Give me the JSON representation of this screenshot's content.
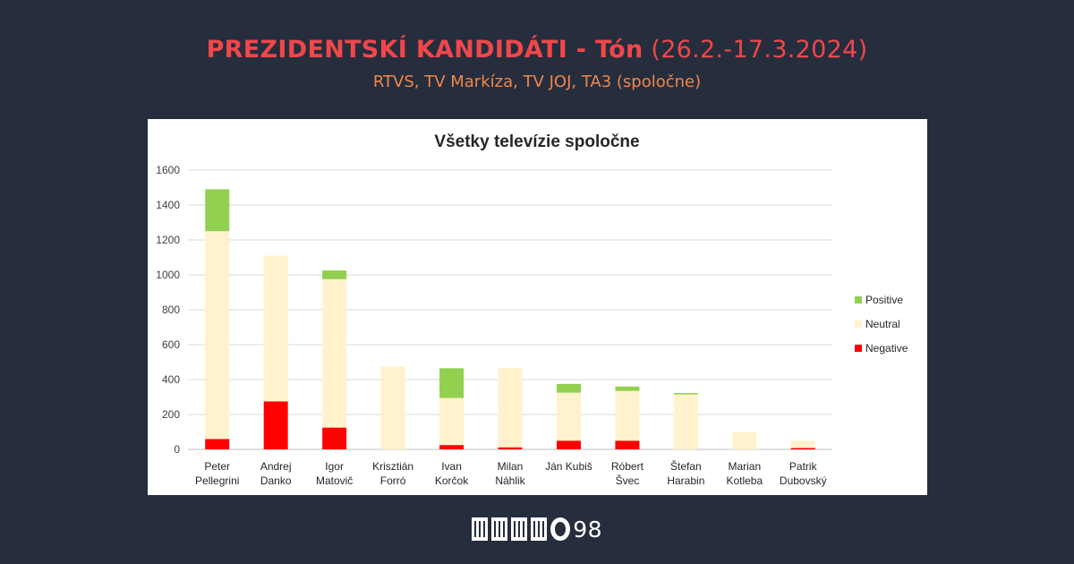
{
  "header": {
    "title_bold": "PREZIDENTSKÍ KANDIDÁTI - Tón",
    "title_light": "(26.2.-17.3.2024)",
    "subtitle": "RTVS, TV Markíza, TV JOJ, TA3 (spoločne)"
  },
  "logo": {
    "mark": "MEMO",
    "number": "98"
  },
  "chart_data": {
    "type": "bar",
    "stacked": true,
    "title": "Všetky televízie spoločne",
    "categories": [
      [
        "Peter",
        "Pellegrini"
      ],
      [
        "Andrej",
        "Danko"
      ],
      [
        "Igor",
        "Matovič"
      ],
      [
        "Krisztián",
        "Forró"
      ],
      [
        "Ivan",
        "Korčok"
      ],
      [
        "Milan",
        "Náhlik"
      ],
      [
        "Ján Kubiš"
      ],
      [
        "Róbert",
        "Švec"
      ],
      [
        "Štefan",
        "Harabin"
      ],
      [
        "Marian",
        "Kotleba"
      ],
      [
        "Patrik",
        "Dubovský"
      ]
    ],
    "series": [
      {
        "name": "Negative",
        "color": "#ff0000",
        "values": [
          60,
          275,
          125,
          0,
          25,
          12,
          50,
          50,
          0,
          0,
          8
        ]
      },
      {
        "name": "Neutral",
        "color": "#fff2cc",
        "values": [
          1190,
          835,
          850,
          475,
          270,
          455,
          275,
          285,
          315,
          100,
          42
        ]
      },
      {
        "name": "Positive",
        "color": "#92d050",
        "values": [
          240,
          0,
          50,
          0,
          170,
          0,
          50,
          25,
          8,
          0,
          0
        ]
      }
    ],
    "ylim": [
      0,
      1600
    ],
    "yticks": [
      0,
      200,
      400,
      600,
      800,
      1000,
      1200,
      1400,
      1600
    ],
    "grid": true,
    "legend_position": "right",
    "legend_order": [
      "Positive",
      "Neutral",
      "Negative"
    ]
  }
}
